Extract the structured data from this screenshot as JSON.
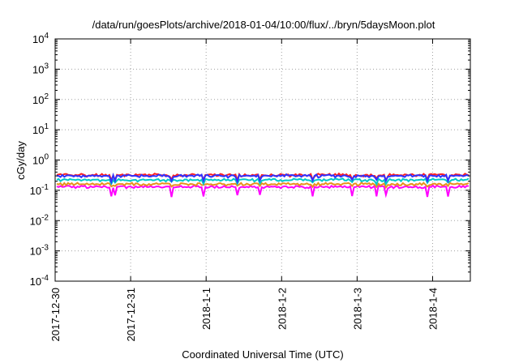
{
  "chart_data": {
    "type": "line",
    "title": "/data/run/goesPlots/archive/2018-01-04/10:00/flux/../bryn/5daysMoon.plot",
    "xlabel": "Coordinated Universal Time (UTC)",
    "ylabel": "cGy/day",
    "yscale": "log",
    "ylim": [
      0.0001,
      10000
    ],
    "xlim": [
      "2017-12-30",
      "2018-01-04 12:00"
    ],
    "grid": true,
    "x_ticks": [
      "2017-12-30",
      "2017-12-31",
      "2018-1-1",
      "2018-1-2",
      "2018-1-3",
      "2018-1-4"
    ],
    "y_ticks": [
      {
        "base": "10",
        "exp": "-4",
        "value": 0.0001
      },
      {
        "base": "10",
        "exp": "-3",
        "value": 0.001
      },
      {
        "base": "10",
        "exp": "-2",
        "value": 0.01
      },
      {
        "base": "10",
        "exp": "-1",
        "value": 0.1
      },
      {
        "base": "10",
        "exp": "0",
        "value": 1
      },
      {
        "base": "10",
        "exp": "1",
        "value": 10
      },
      {
        "base": "10",
        "exp": "2",
        "value": 100
      },
      {
        "base": "10",
        "exp": "3",
        "value": 1000
      },
      {
        "base": "10",
        "exp": "4",
        "value": 10000
      }
    ],
    "series": [
      {
        "color": "#ff00ff",
        "level": 0.13,
        "dip_depth": 0.5
      },
      {
        "color": "#e8901c",
        "level": 0.16,
        "dip_depth": 0.15
      },
      {
        "color": "#00c8c8",
        "level": 0.22,
        "dip_depth": 0.2
      },
      {
        "color": "#ff2020",
        "level": 0.32,
        "dip_depth": 0.3
      },
      {
        "color": "#3030ff",
        "level": 0.3,
        "dip_depth": 0.3
      }
    ]
  }
}
